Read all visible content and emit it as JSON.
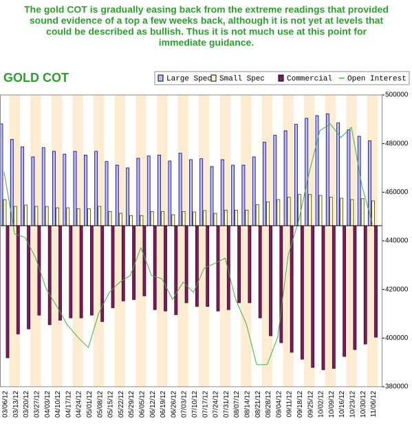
{
  "caption": [
    "The gold COT is gradually easing back from the extreme readings that provided",
    "sound evidence of a top a few weeks back, although it is not yet at levels that",
    "could be described as bullish. Thus it is not much use at this point for",
    "immediate guidance."
  ],
  "chart_data": {
    "type": "bar",
    "title": "GOLD COT",
    "x": [
      "03/06/12",
      "03/13/12",
      "03/20/12",
      "03/27/12",
      "04/03/12",
      "04/10/12",
      "04/17/12",
      "04/24/12",
      "05/01/12",
      "05/08/12",
      "05/15/12",
      "05/22/12",
      "05/29/12",
      "06/05/12",
      "06/12/12",
      "06/19/12",
      "06/26/12",
      "07/03/12",
      "07/10/12",
      "07/17/12",
      "07/24/12",
      "07/31/12",
      "08/07/12",
      "08/14/12",
      "08/21/12",
      "08/28/12",
      "09/04/12",
      "09/11/12",
      "09/18/12",
      "09/25/12",
      "10/02/12",
      "10/09/12",
      "10/16/12",
      "10/23/12",
      "10/30/12",
      "11/06/12"
    ],
    "ylim": [
      -351000,
      285000
    ],
    "y2lim": [
      380000,
      500000
    ],
    "y2ticks": [
      380000,
      400000,
      420000,
      440000,
      460000,
      480000,
      500000
    ],
    "series": [
      {
        "name": "Large Spec",
        "color": "#b8b8f8",
        "values": [
          222000,
          188000,
          172000,
          150000,
          170000,
          162000,
          156000,
          162000,
          154000,
          162000,
          140000,
          132000,
          126000,
          147000,
          152000,
          154000,
          141000,
          158000,
          144000,
          146000,
          129000,
          144000,
          132000,
          132000,
          150000,
          182000,
          197000,
          207000,
          221000,
          234000,
          240000,
          244000,
          224000,
          209000,
          195000,
          185000
        ]
      },
      {
        "name": "Small Spec",
        "color": "#ffffd0",
        "values": [
          57000,
          42000,
          45000,
          42000,
          42000,
          39000,
          39000,
          37000,
          37000,
          42000,
          31000,
          27000,
          22000,
          22000,
          31000,
          31000,
          24000,
          31000,
          30000,
          33000,
          27000,
          34000,
          34000,
          34000,
          46000,
          52000,
          57000,
          62000,
          68000,
          68000,
          66000,
          62000,
          60000,
          57000,
          59000,
          54000
        ]
      },
      {
        "name": "Commercial",
        "color": "#7a1e5a",
        "values": [
          -288000,
          -236000,
          -225000,
          -195000,
          -216000,
          -206000,
          -201000,
          -201000,
          -195000,
          -209000,
          -179000,
          -164000,
          -161000,
          -153000,
          -183000,
          -186000,
          -194000,
          -168000,
          -176000,
          -176000,
          -186000,
          -183000,
          -168000,
          -168000,
          -201000,
          -240000,
          -255000,
          -276000,
          -291000,
          -309000,
          -314000,
          -311000,
          -285000,
          -270000,
          -258000,
          -243000
        ]
      },
      {
        "name": "Open Interest",
        "color": "#3cb043",
        "axis": "y2",
        "values": [
          468300,
          442800,
          441400,
          432900,
          420200,
          413100,
          405500,
          400400,
          396100,
          410300,
          418800,
          423000,
          425800,
          437200,
          425800,
          424400,
          415900,
          423000,
          418800,
          428700,
          430700,
          432900,
          415900,
          406000,
          389100,
          389100,
          400400,
          434300,
          448500,
          468300,
          485300,
          488100,
          482500,
          486700,
          462600,
          447000
        ]
      }
    ]
  }
}
